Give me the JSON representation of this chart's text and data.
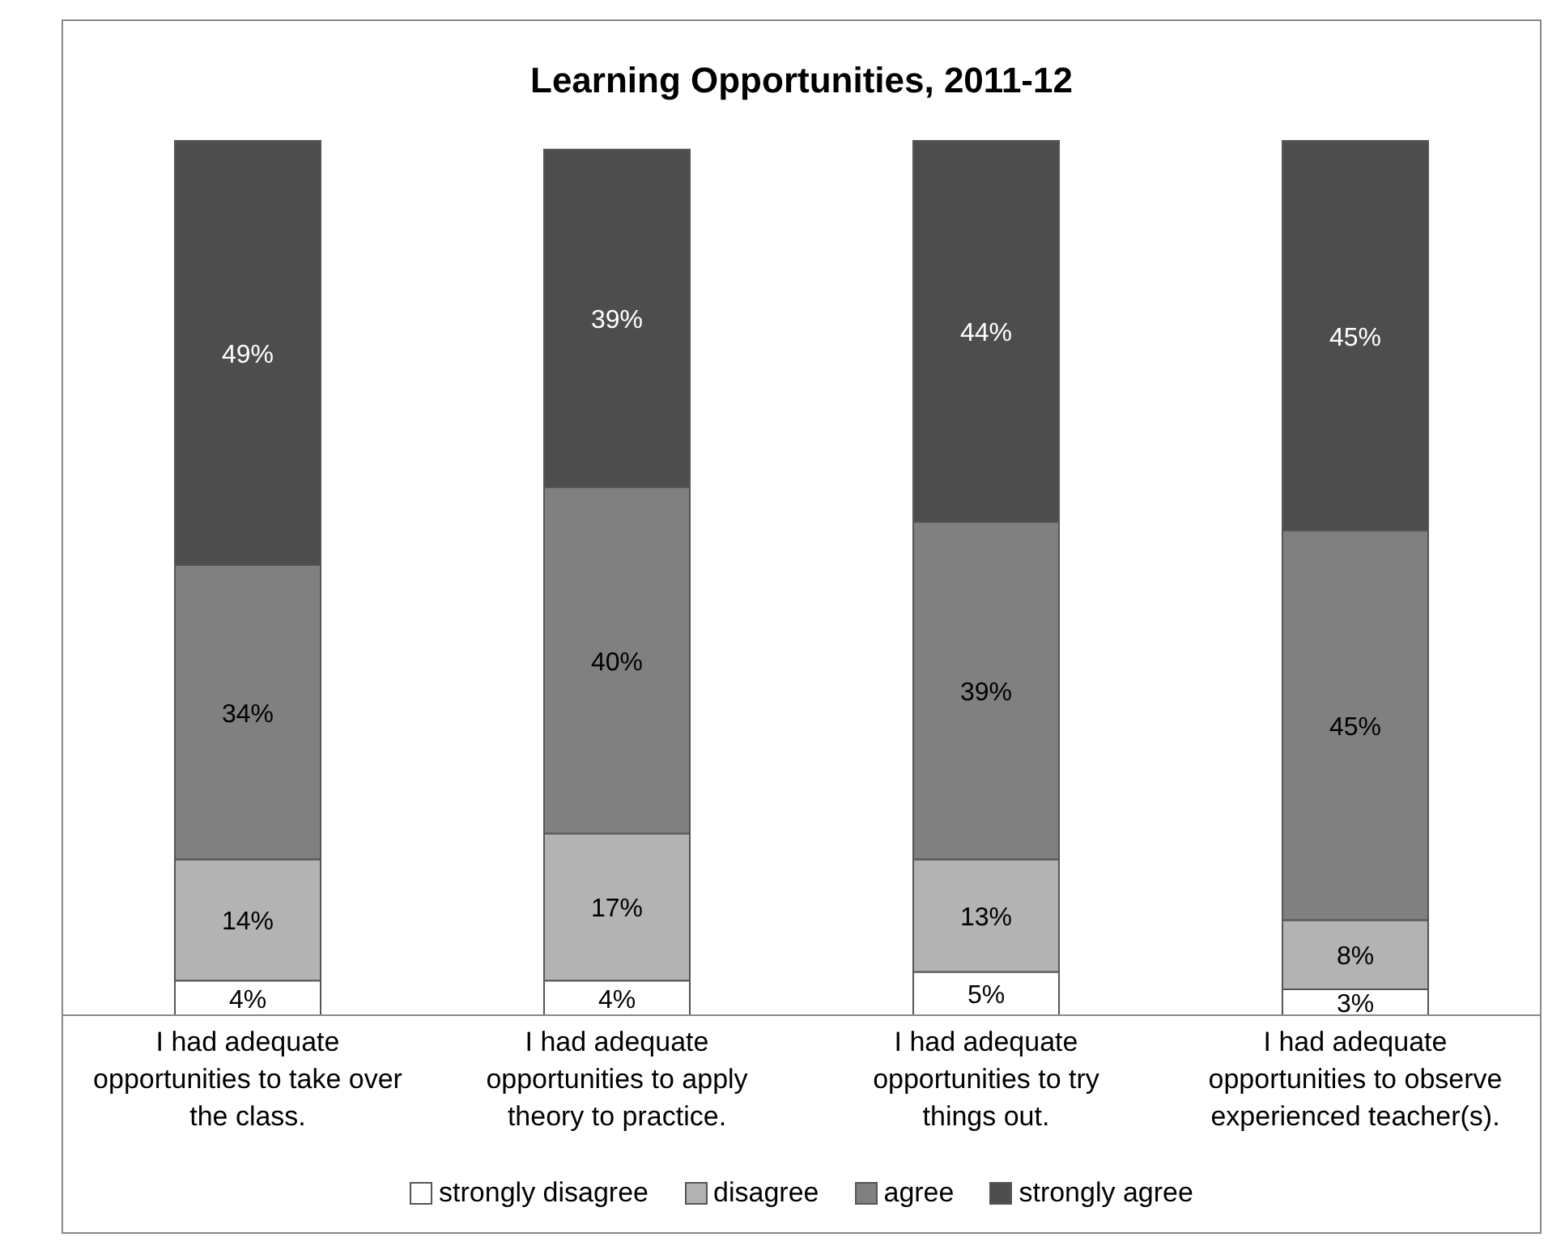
{
  "chart_data": {
    "type": "bar",
    "title": "Learning Opportunities, 2011-12",
    "stacked": true,
    "legend": "bottom",
    "categories": [
      "I had adequate opportunities to take over the class.",
      "I had adequate opportunities to apply theory to practice.",
      "I had adequate opportunities to try things out.",
      "I had adequate opportunities to observe experienced teacher(s)."
    ],
    "series": [
      {
        "name": "strongly disagree",
        "color": "#ffffff",
        "values": [
          4,
          4,
          5,
          3
        ],
        "value_labels": [
          "4%",
          "4%",
          "5%",
          "3%"
        ]
      },
      {
        "name": "disagree",
        "color": "#b3b3b3",
        "values": [
          14,
          17,
          13,
          8
        ],
        "value_labels": [
          "14%",
          "17%",
          "13%",
          "8%"
        ]
      },
      {
        "name": "agree",
        "color": "#808080",
        "values": [
          34,
          40,
          39,
          45
        ],
        "value_labels": [
          "34%",
          "40%",
          "39%",
          "45%"
        ]
      },
      {
        "name": "strongly agree",
        "color": "#4d4d4d",
        "values": [
          49,
          39,
          44,
          45
        ],
        "value_labels": [
          "49%",
          "39%",
          "44%",
          "45%"
        ]
      }
    ]
  }
}
